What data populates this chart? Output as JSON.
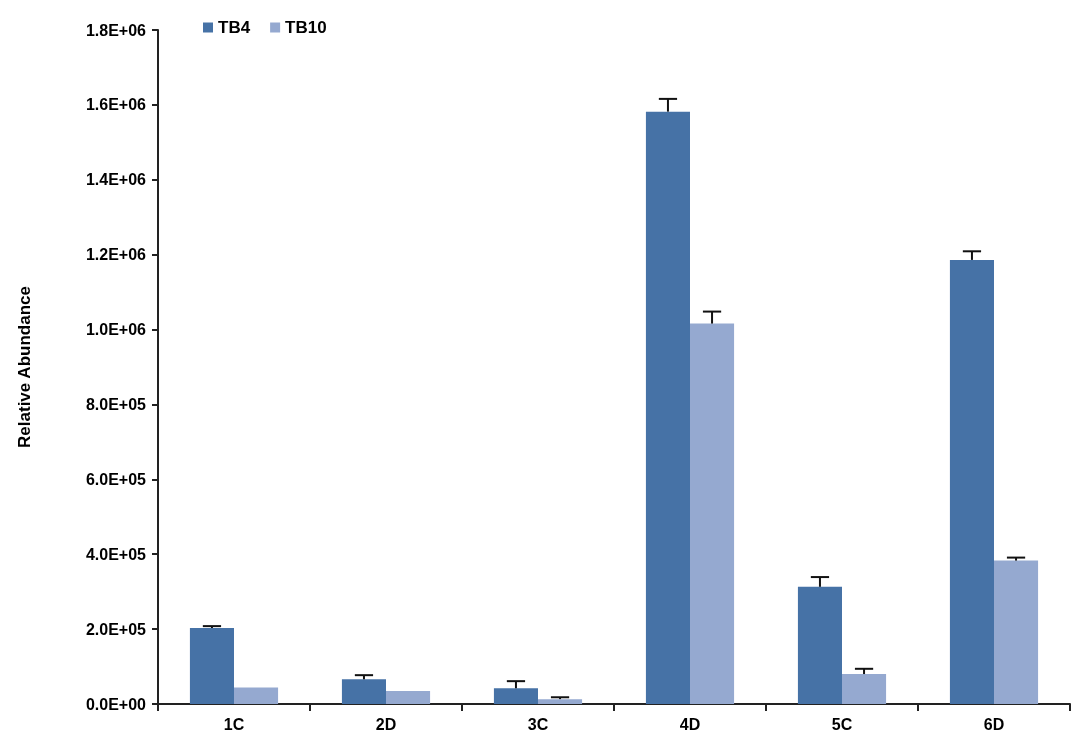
{
  "chart_data": {
    "type": "bar",
    "ylabel": "Relative Abundance",
    "categories": [
      "1C",
      "2D",
      "3C",
      "4D",
      "5C",
      "6D"
    ],
    "series": [
      {
        "name": "TB4",
        "color": "#4672a6",
        "values": [
          203000,
          66000,
          42000,
          1582000,
          313000,
          1186000
        ],
        "errors": [
          5000,
          11000,
          19000,
          34000,
          26000,
          23000
        ]
      },
      {
        "name": "TB10",
        "color": "#95a9d0",
        "values": [
          44000,
          35000,
          13000,
          1016000,
          80000,
          383000
        ],
        "errors": [
          null,
          null,
          5000,
          32000,
          14000,
          8000
        ]
      }
    ],
    "ylim": [
      0,
      1800000
    ],
    "yticks": [
      {
        "value": 0,
        "label": "0.0E+00"
      },
      {
        "value": 200000,
        "label": "2.0E+05"
      },
      {
        "value": 400000,
        "label": "4.0E+05"
      },
      {
        "value": 600000,
        "label": "6.0E+05"
      },
      {
        "value": 800000,
        "label": "8.0E+05"
      },
      {
        "value": 1000000,
        "label": "1.0E+06"
      },
      {
        "value": 1200000,
        "label": "1.2E+06"
      },
      {
        "value": 1400000,
        "label": "1.4E+06"
      },
      {
        "value": 1600000,
        "label": "1.6E+06"
      },
      {
        "value": 1800000,
        "label": "1.8E+06"
      }
    ],
    "grid": false,
    "legend": "top left"
  }
}
